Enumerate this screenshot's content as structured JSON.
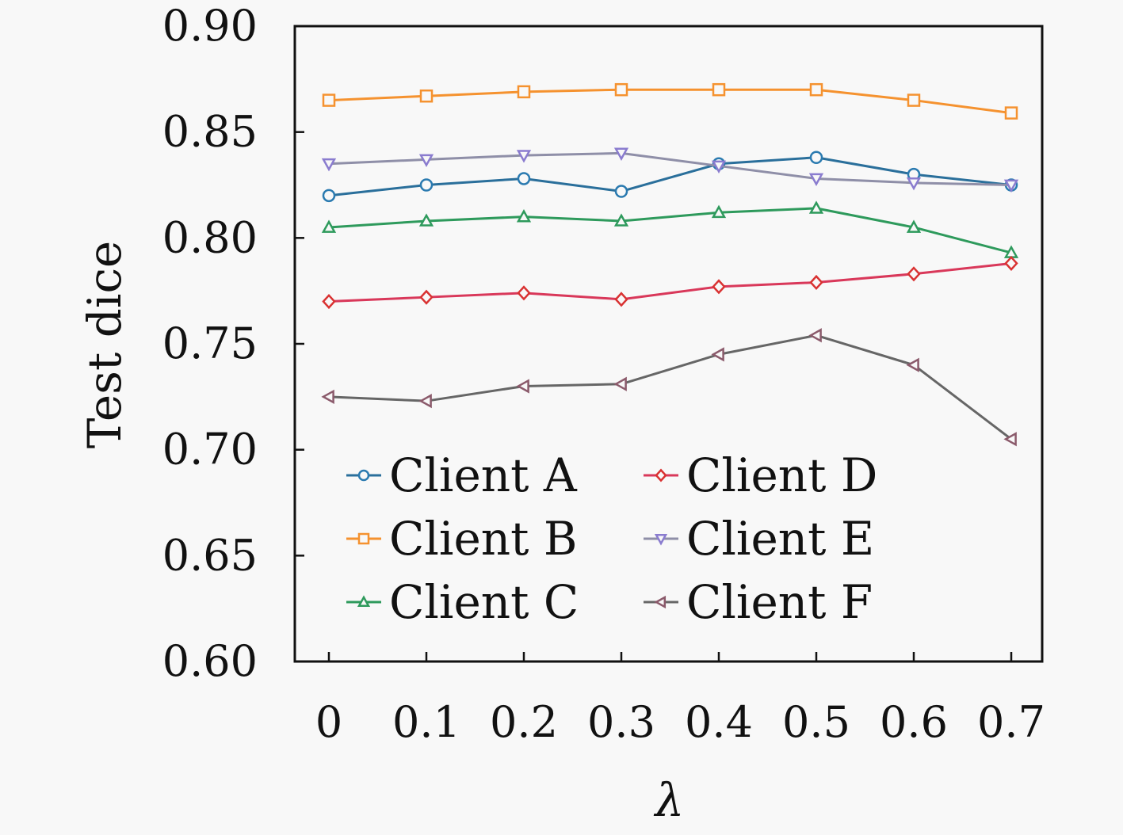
{
  "chart_data": {
    "type": "line",
    "xlabel": "λ",
    "ylabel": "Test dice",
    "x": [
      0,
      0.1,
      0.2,
      0.3,
      0.4,
      0.5,
      0.6,
      0.7
    ],
    "x_tick_labels": [
      "0",
      "0.1",
      "0.2",
      "0.3",
      "0.4",
      "0.5",
      "0.6",
      "0.7"
    ],
    "ylim": [
      0.6,
      0.9
    ],
    "y_ticks": [
      0.6,
      0.65,
      0.7,
      0.75,
      0.8,
      0.85,
      0.9
    ],
    "y_tick_labels": [
      "0.60",
      "0.65",
      "0.70",
      "0.75",
      "0.80",
      "0.85",
      "0.90"
    ],
    "grid": false,
    "legend_position": "lower-center",
    "series": [
      {
        "name": "Client A",
        "color": "#2a7ab0",
        "marker": "circle",
        "values": [
          0.82,
          0.825,
          0.828,
          0.822,
          0.835,
          0.838,
          0.83,
          0.825
        ]
      },
      {
        "name": "Client B",
        "color": "#f5922f",
        "marker": "square",
        "values": [
          0.865,
          0.867,
          0.869,
          0.87,
          0.87,
          0.87,
          0.865,
          0.859
        ]
      },
      {
        "name": "Client C",
        "color": "#2e9a5c",
        "marker": "triangle-up",
        "values": [
          0.805,
          0.808,
          0.81,
          0.808,
          0.812,
          0.814,
          0.805,
          0.793
        ]
      },
      {
        "name": "Client D",
        "color": "#d93232",
        "marker": "diamond",
        "values": [
          0.77,
          0.772,
          0.774,
          0.771,
          0.777,
          0.779,
          0.783,
          0.788
        ]
      },
      {
        "name": "Client E",
        "color": "#8a7ccf",
        "marker": "triangle-down",
        "values": [
          0.835,
          0.837,
          0.839,
          0.84,
          0.834,
          0.828,
          0.826,
          0.825
        ]
      },
      {
        "name": "Client F",
        "color": "#8b5a6b",
        "marker": "triangle-left",
        "values": [
          0.725,
          0.723,
          0.73,
          0.731,
          0.745,
          0.754,
          0.74,
          0.705
        ]
      }
    ]
  },
  "style": {
    "series_line_colors": [
      "#2a6f9b",
      "#f5922f",
      "#2e9a5c",
      "#d9385a",
      "#8f8fa8",
      "#666666"
    ]
  }
}
